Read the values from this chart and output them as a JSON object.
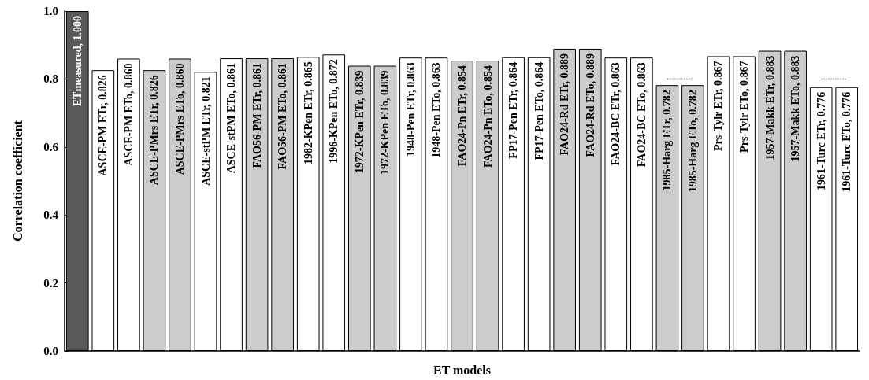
{
  "chart_data": {
    "type": "bar",
    "xlabel": "ET models",
    "ylabel": "Correlation coefficient",
    "ylim": [
      0,
      1
    ],
    "yticks": [
      {
        "value": 0,
        "label": "0.0"
      },
      0.2,
      0.4,
      0.6,
      0.8,
      {
        "value": 1,
        "label": "1.0"
      }
    ],
    "grid": false,
    "categories": [
      null,
      null,
      null,
      null,
      null,
      null,
      null,
      null,
      null,
      null,
      null,
      null,
      null,
      null,
      null,
      null,
      null,
      null,
      null,
      null,
      null,
      null,
      null,
      null,
      null,
      null,
      null,
      null,
      null,
      null,
      null
    ],
    "series": [
      {
        "values": [
          1.0,
          0.826,
          0.86,
          0.826,
          0.86,
          0.821,
          0.861,
          0.861,
          0.861,
          0.865,
          0.872,
          0.839,
          0.839,
          0.863,
          0.863,
          0.854,
          0.854,
          0.864,
          0.864,
          0.889,
          0.889,
          0.863,
          0.863,
          0.782,
          0.782,
          0.867,
          0.867,
          0.883,
          0.883,
          0.776,
          0.776
        ],
        "colors": [
          "#595959",
          "#ffffff",
          "#ffffff",
          "#cccccc",
          "#cccccc",
          "#ffffff",
          "#ffffff",
          "#cccccc",
          "#cccccc",
          "#ffffff",
          "#ffffff",
          "#cccccc",
          "#cccccc",
          "#ffffff",
          "#ffffff",
          "#cccccc",
          "#cccccc",
          "#ffffff",
          "#ffffff",
          "#cccccc",
          "#cccccc",
          "#ffffff",
          "#ffffff",
          "#cccccc",
          "#cccccc",
          "#ffffff",
          "#ffffff",
          "#cccccc",
          "#cccccc",
          "#ffffff",
          "#ffffff"
        ],
        "value_labels": [
          "ETmeasured, 1.000",
          "ASCE-PM ETr, 0.826",
          "ASCE-PM ETo, 0.860",
          "ASCE-PMrs ETr, 0.826",
          "ASCE-PMrs ETo, 0.860",
          "ASCE-stPM ETr, 0.821",
          "ASCE-stPM ETo, 0.861",
          "FAO56-PM ETr, 0.861",
          "FAO56-PM ETo, 0.861",
          "1982-KPen ETr, 0.865",
          "1996-KPen ETo, 0.872",
          "1972-KPen ETr, 0.839",
          "1972-KPen ETo, 0.839",
          "1948-Pen ETr, 0.863",
          "1948-Pen ETo, 0.863",
          "FAO24-Pn ETr, 0.854",
          "FAO24-Pn ETo, 0.854",
          "FP17-Pen ETr, 0.864",
          "FP17-Pen ETo, 0.864",
          "FAO24-Rd ETr, 0.889",
          "FAO24-Rd ETo, 0.889",
          "FAO24-BC ETr, 0.863",
          "FAO24-BC ETo, 0.863",
          "1985-Harg ETr, 0.782",
          "1985-Harg ETo, 0.782",
          "Prs-Tylr ETr, 0.867",
          "Prs-Tylr ETo, 0.867",
          "1957-Makk ETr, 0.883",
          "1957-Makk ETo, 0.883",
          "1961-Turc ETr, 0.776",
          "1961-Turc ETo, 0.776"
        ]
      },
      {
        "type": "line",
        "color": "#555555",
        "line_style": "dotted",
        "marker": "none",
        "values": [
          null,
          null,
          null,
          null,
          null,
          null,
          null,
          null,
          null,
          null,
          null,
          null,
          null,
          null,
          null,
          null,
          null,
          null,
          null,
          null,
          null,
          null,
          null,
          0.8,
          0.8,
          null,
          null,
          null,
          null,
          0.8,
          0.8
        ]
      }
    ]
  }
}
